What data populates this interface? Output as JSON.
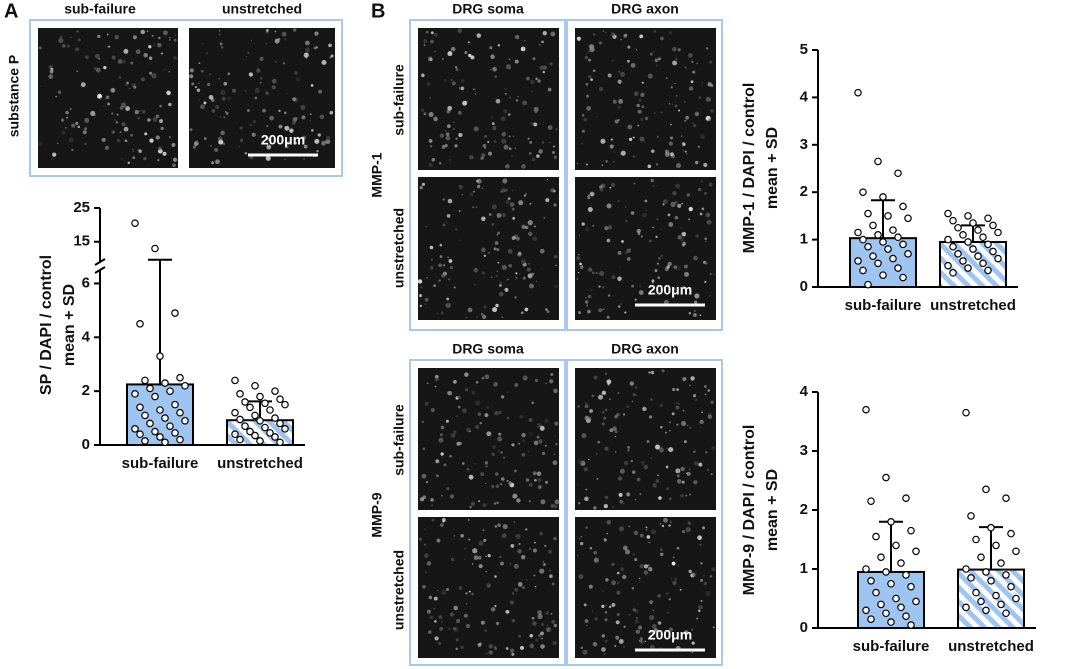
{
  "panels": {
    "A": {
      "label": "A",
      "columns": [
        "sub-failure",
        "unstretched"
      ],
      "row_label": "substance P",
      "scale_bar": "200μm"
    },
    "B": {
      "label": "B",
      "blocks": [
        {
          "columns": [
            "DRG soma",
            "DRG axon"
          ],
          "rows": [
            "sub-failure",
            "unstretched"
          ],
          "marker": "MMP-1",
          "scale_bar": "200μm"
        },
        {
          "columns": [
            "DRG soma",
            "DRG axon"
          ],
          "rows": [
            "sub-failure",
            "unstretched"
          ],
          "marker": "MMP-9",
          "scale_bar": "200μm"
        }
      ]
    }
  },
  "chart_data": [
    {
      "type": "bar",
      "ylabel": [
        "SP / DAPI / control",
        "mean + SD"
      ],
      "categories": [
        "sub-failure",
        "unstretched"
      ],
      "values": [
        2.25,
        0.92
      ],
      "errors": [
        7.4,
        0.7
      ],
      "points": [
        [
          20.5,
          13,
          4.9,
          4.5,
          3.3,
          2.5,
          2.4,
          2.3,
          2.2,
          2.1,
          2.0,
          1.9,
          1.8,
          1.5,
          1.4,
          1.3,
          1.2,
          1.1,
          1.0,
          0.9,
          0.8,
          0.7,
          0.6,
          0.5,
          0.45,
          0.4,
          0.3,
          0.2,
          0.15,
          0.1
        ],
        [
          2.4,
          2.2,
          2.0,
          1.9,
          1.8,
          1.7,
          1.6,
          1.55,
          1.5,
          1.4,
          1.3,
          1.2,
          1.1,
          1.0,
          0.95,
          0.9,
          0.8,
          0.7,
          0.65,
          0.6,
          0.5,
          0.45,
          0.4,
          0.35,
          0.3,
          0.2,
          0.15,
          0.1
        ]
      ],
      "color": "#9ec5f2",
      "hatch": [
        false,
        true
      ],
      "ylim": [
        0,
        25
      ],
      "ybreak": [
        6.5,
        9
      ],
      "yticks": [
        0,
        2,
        4,
        6,
        15,
        25
      ]
    },
    {
      "type": "bar",
      "ylabel": [
        "MMP-1 / DAPI / control",
        "mean + SD"
      ],
      "categories": [
        "sub-failure",
        "unstretched"
      ],
      "values": [
        1.03,
        0.95
      ],
      "errors": [
        0.8,
        0.35
      ],
      "points": [
        [
          4.1,
          2.65,
          2.4,
          2.0,
          1.9,
          1.7,
          1.55,
          1.5,
          1.45,
          1.3,
          1.2,
          1.15,
          1.1,
          1.05,
          1.0,
          0.95,
          0.9,
          0.85,
          0.8,
          0.7,
          0.65,
          0.6,
          0.55,
          0.5,
          0.4,
          0.35,
          0.25,
          0.2,
          0.05
        ],
        [
          1.55,
          1.5,
          1.45,
          1.4,
          1.35,
          1.3,
          1.25,
          1.2,
          1.15,
          1.1,
          1.05,
          1.0,
          0.95,
          0.9,
          0.85,
          0.8,
          0.75,
          0.7,
          0.65,
          0.6,
          0.55,
          0.5,
          0.45,
          0.4,
          0.35,
          0.3
        ]
      ],
      "color": "#9ec5f2",
      "hatch": [
        false,
        true
      ],
      "ylim": [
        0,
        5
      ],
      "yticks": [
        0,
        1,
        2,
        3,
        4,
        5
      ]
    },
    {
      "type": "bar",
      "ylabel": [
        "MMP-9 / DAPI / control",
        "mean + SD"
      ],
      "categories": [
        "sub-failure",
        "unstretched"
      ],
      "values": [
        0.95,
        0.99
      ],
      "errors": [
        0.85,
        0.72
      ],
      "points": [
        [
          3.7,
          2.55,
          2.2,
          2.15,
          1.8,
          1.65,
          1.55,
          1.4,
          1.3,
          1.2,
          1.1,
          1.0,
          0.95,
          0.9,
          0.8,
          0.75,
          0.7,
          0.6,
          0.5,
          0.45,
          0.4,
          0.35,
          0.3,
          0.25,
          0.2,
          0.15,
          0.1,
          0.05
        ],
        [
          3.65,
          2.35,
          2.2,
          1.9,
          1.7,
          1.6,
          1.5,
          1.4,
          1.3,
          1.2,
          1.1,
          1.0,
          0.95,
          0.9,
          0.85,
          0.8,
          0.7,
          0.6,
          0.55,
          0.5,
          0.45,
          0.4,
          0.35,
          0.3,
          0.25
        ]
      ],
      "color": "#9ec5f2",
      "hatch": [
        false,
        true
      ],
      "ylim": [
        0,
        4
      ],
      "yticks": [
        0,
        1,
        2,
        3,
        4
      ]
    }
  ]
}
